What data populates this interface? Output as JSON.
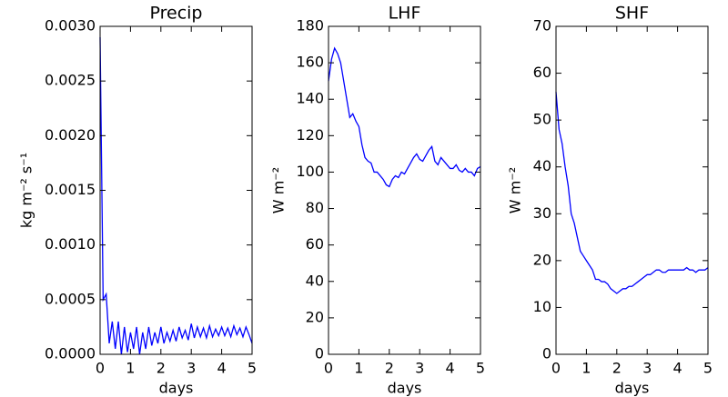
{
  "chart_data": [
    {
      "type": "line",
      "title": "Precip",
      "xlabel": "days",
      "ylabel": "kg m⁻² s⁻¹",
      "color": "#0000ff",
      "x": [
        0,
        0.1,
        0.2,
        0.3,
        0.4,
        0.5,
        0.6,
        0.7,
        0.8,
        0.9,
        1,
        1.1,
        1.2,
        1.3,
        1.4,
        1.5,
        1.6,
        1.7,
        1.8,
        1.9,
        2,
        2.1,
        2.2,
        2.3,
        2.4,
        2.5,
        2.6,
        2.7,
        2.8,
        2.9,
        3,
        3.1,
        3.2,
        3.3,
        3.4,
        3.5,
        3.6,
        3.7,
        3.8,
        3.9,
        4,
        4.1,
        4.2,
        4.3,
        4.4,
        4.5,
        4.6,
        4.7,
        4.8,
        4.9,
        5
      ],
      "values": [
        0.0029,
        0.0005,
        0.00055,
        0.0001,
        0.0003,
        5e-05,
        0.0003,
        0,
        0.00025,
        2e-05,
        0.0002,
        5e-05,
        0.00025,
        0,
        0.0002,
        5e-05,
        0.00025,
        8e-05,
        0.0002,
        0.0001,
        0.00025,
        0.0001,
        0.0002,
        0.00012,
        0.00022,
        0.00012,
        0.00025,
        0.00015,
        0.00022,
        0.00013,
        0.00028,
        0.00015,
        0.00025,
        0.00016,
        0.00024,
        0.00015,
        0.00026,
        0.00016,
        0.00023,
        0.00017,
        0.00025,
        0.00017,
        0.00024,
        0.00016,
        0.00026,
        0.00018,
        0.00024,
        0.00016,
        0.00025,
        0.00018,
        0.0001
      ],
      "xlim": [
        0,
        5
      ],
      "xticks": [
        0,
        1,
        2,
        3,
        4,
        5
      ],
      "ylim": [
        0,
        0.003
      ],
      "yticks": [
        {
          "value": 0,
          "label": "0.0000"
        },
        {
          "value": 0.0005,
          "label": "0.0005"
        },
        {
          "value": 0.001,
          "label": "0.0010"
        },
        {
          "value": 0.0015,
          "label": "0.0015"
        },
        {
          "value": 0.002,
          "label": "0.0020"
        },
        {
          "value": 0.0025,
          "label": "0.0025"
        },
        {
          "value": 0.003,
          "label": "0.0030"
        }
      ]
    },
    {
      "type": "line",
      "title": "LHF",
      "xlabel": "days",
      "ylabel": "W m⁻²",
      "color": "#0000ff",
      "x": [
        0,
        0.1,
        0.2,
        0.3,
        0.4,
        0.5,
        0.6,
        0.7,
        0.8,
        0.9,
        1,
        1.1,
        1.2,
        1.3,
        1.4,
        1.5,
        1.6,
        1.7,
        1.8,
        1.9,
        2,
        2.1,
        2.2,
        2.3,
        2.4,
        2.5,
        2.6,
        2.7,
        2.8,
        2.9,
        3,
        3.1,
        3.2,
        3.3,
        3.4,
        3.5,
        3.6,
        3.7,
        3.8,
        3.9,
        4,
        4.1,
        4.2,
        4.3,
        4.4,
        4.5,
        4.6,
        4.7,
        4.8,
        4.9,
        5
      ],
      "values": [
        150,
        162,
        168,
        165,
        160,
        150,
        140,
        130,
        132,
        128,
        125,
        115,
        108,
        106,
        105,
        100,
        100,
        98,
        96,
        93,
        92,
        96,
        98,
        97,
        100,
        99,
        102,
        105,
        108,
        110,
        107,
        106,
        109,
        112,
        114,
        106,
        104,
        108,
        106,
        104,
        102,
        102,
        104,
        101,
        100,
        102,
        100,
        100,
        98,
        102,
        103
      ],
      "xlim": [
        0,
        5
      ],
      "xticks": [
        0,
        1,
        2,
        3,
        4,
        5
      ],
      "ylim": [
        0,
        180
      ],
      "yticks": [
        0,
        20,
        40,
        60,
        80,
        100,
        120,
        140,
        160,
        180
      ]
    },
    {
      "type": "line",
      "title": "SHF",
      "xlabel": "days",
      "ylabel": "W m⁻²",
      "color": "#0000ff",
      "x": [
        0,
        0.1,
        0.2,
        0.3,
        0.4,
        0.5,
        0.6,
        0.7,
        0.8,
        0.9,
        1,
        1.1,
        1.2,
        1.3,
        1.4,
        1.5,
        1.6,
        1.7,
        1.8,
        1.9,
        2,
        2.1,
        2.2,
        2.3,
        2.4,
        2.5,
        2.6,
        2.7,
        2.8,
        2.9,
        3,
        3.1,
        3.2,
        3.3,
        3.4,
        3.5,
        3.6,
        3.7,
        3.8,
        3.9,
        4,
        4.1,
        4.2,
        4.3,
        4.4,
        4.5,
        4.6,
        4.7,
        4.8,
        4.9,
        5
      ],
      "values": [
        56,
        48,
        45,
        40,
        36,
        30,
        28,
        25,
        22,
        21,
        20,
        19,
        18,
        16,
        16,
        15.5,
        15.5,
        15,
        14,
        13.5,
        13,
        13.5,
        14,
        14,
        14.5,
        14.5,
        15,
        15.5,
        16,
        16.5,
        17,
        17,
        17.5,
        18,
        18,
        17.5,
        17.5,
        18,
        18,
        18,
        18,
        18,
        18,
        18.5,
        18,
        18,
        17.5,
        18,
        18,
        18,
        18.5
      ],
      "xlim": [
        0,
        5
      ],
      "xticks": [
        0,
        1,
        2,
        3,
        4,
        5
      ],
      "ylim": [
        0,
        70
      ],
      "yticks": [
        0,
        10,
        20,
        30,
        40,
        50,
        60,
        70
      ]
    }
  ]
}
